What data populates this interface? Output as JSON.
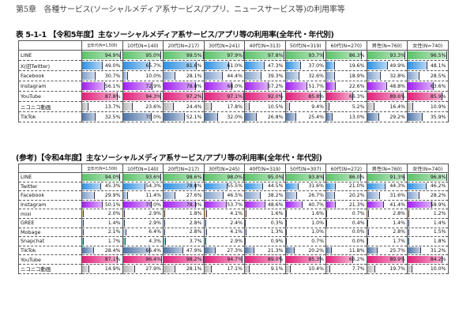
{
  "chapter_heading": "第5章　各種サービス(ソーシャルメディア系サービス/アプリ、ニュースサービス等)の利用率等",
  "colors": {
    "LINE": "#5cc26a",
    "X": "#2f8fe0",
    "Twitter": "#2f8fe0",
    "Facebook": "#7f9ec8",
    "Instagram": "#a020f0",
    "YouTube": "#e0207a",
    "niconico": "#b5b5b5",
    "TikTok": "#4f74a5",
    "mixi": "#f0b040",
    "GREE": "#9fc7e8",
    "Mobage": "#9fb8d8",
    "Snapchat": "#20b090"
  },
  "table1": {
    "title": "表 5-1-1 【令和5年度】主なソーシャルメディア系サービス/アプリ等の利用率(全年代・年代別)",
    "columns": [
      "全年代(N=1,500)",
      "10代(N=140)",
      "20代(N=217)",
      "30代(N=241)",
      "40代(N=313)",
      "50代(N=319)",
      "60代(N=270)",
      "男性(N=760)",
      "女性(N=740)"
    ],
    "rows": [
      {
        "label": "LINE",
        "key": "LINE",
        "values": [
          94.9,
          95.0,
          99.5,
          97.9,
          97.8,
          93.7,
          86.3,
          93.3,
          96.5
        ]
      },
      {
        "label": "X(旧Twitter)",
        "key": "X",
        "values": [
          49.0,
          65.7,
          81.6,
          61.0,
          47.3,
          37.0,
          19.6,
          49.9,
          48.1
        ]
      },
      {
        "label": "Facebook",
        "key": "Facebook",
        "values": [
          30.7,
          10.0,
          28.1,
          44.4,
          39.3,
          32.6,
          18.9,
          32.8,
          28.5
        ]
      },
      {
        "label": "Instagram",
        "key": "Instagram",
        "values": [
          56.1,
          72.9,
          78.8,
          68.0,
          57.2,
          51.7,
          22.6,
          48.8,
          63.6
        ]
      },
      {
        "label": "YouTube",
        "key": "YouTube",
        "values": [
          87.8,
          94.3,
          97.2,
          97.1,
          92.0,
          85.8,
          66.3,
          89.6,
          85.9
        ]
      },
      {
        "label": "ニコニコ動画",
        "key": "niconico",
        "values": [
          13.7,
          23.6,
          24.4,
          17.8,
          10.5,
          9.4,
          5.2,
          16.4,
          10.9
        ]
      },
      {
        "label": "TikTok",
        "key": "TikTok",
        "values": [
          32.5,
          70.0,
          52.1,
          32.0,
          26.8,
          25.4,
          13.0,
          29.2,
          35.9
        ]
      }
    ]
  },
  "table2": {
    "title": "(参考)【令和4年度】主なソーシャルメディア系サービス/アプリ等の利用率(全年代・年代別)",
    "columns": [
      "全年代(N=1,500)",
      "10代(N=140)",
      "20代(N=217)",
      "30代(N=245)",
      "40代(N=319)",
      "50代(N=307)",
      "60代(N=272)",
      "男性(N=760)",
      "女性(N=740)"
    ],
    "rows": [
      {
        "label": "LINE",
        "key": "LINE",
        "values": [
          94.0,
          93.6,
          98.6,
          98.0,
          95.0,
          93.8,
          86.0,
          91.3,
          96.8
        ]
      },
      {
        "label": "Twitter",
        "key": "Twitter",
        "values": [
          45.3,
          54.3,
          78.8,
          55.5,
          44.5,
          31.6,
          21.0,
          44.3,
          46.2
        ]
      },
      {
        "label": "Facebook",
        "key": "Facebook",
        "values": [
          29.9,
          11.4,
          27.6,
          46.5,
          38.2,
          26.7,
          20.2,
          31.6,
          28.2
        ]
      },
      {
        "label": "Instagram",
        "key": "Instagram",
        "values": [
          50.1,
          70.0,
          78.3,
          53.7,
          48.6,
          40.7,
          21.3,
          41.4,
          58.9
        ]
      },
      {
        "label": "mixi",
        "key": "mixi",
        "values": [
          2.0,
          2.9,
          1.8,
          4.1,
          1.6,
          1.6,
          0.7,
          2.8,
          1.2
        ]
      },
      {
        "label": "GREE",
        "key": "GREE",
        "values": [
          1.4,
          2.9,
          2.8,
          2.4,
          0.3,
          1.0,
          0.4,
          1.4,
          1.4
        ]
      },
      {
        "label": "Mobage",
        "key": "Mobage",
        "values": [
          2.1,
          6.4,
          2.8,
          4.1,
          1.3,
          1.0,
          0.0,
          2.8,
          1.5
        ]
      },
      {
        "label": "Snapchat",
        "key": "Snapchat",
        "values": [
          1.7,
          4.3,
          3.7,
          2.9,
          0.9,
          0.7,
          0.0,
          1.7,
          1.8
        ]
      },
      {
        "label": "TikTok",
        "key": "TikTok",
        "values": [
          28.4,
          66.4,
          47.9,
          27.3,
          21.3,
          20.2,
          11.8,
          25.7,
          31.2
        ]
      },
      {
        "label": "YouTube",
        "key": "YouTube",
        "values": [
          87.1,
          96.4,
          98.2,
          94.7,
          89.0,
          85.3,
          66.2,
          89.9,
          84.2
        ]
      },
      {
        "label": "ニコニコ動画",
        "key": "niconico",
        "values": [
          14.9,
          27.9,
          28.1,
          17.1,
          9.1,
          10.4,
          7.7,
          19.7,
          10.0
        ]
      }
    ]
  },
  "chart_data": [
    {
      "type": "table",
      "title": "表 5-1-1 【令和5年度】主なソーシャルメディア系サービス/アプリ等の利用率(全年代・年代別)",
      "categories": [
        "全年代(N=1,500)",
        "10代(N=140)",
        "20代(N=217)",
        "30代(N=241)",
        "40代(N=313)",
        "50代(N=319)",
        "60代(N=270)",
        "男性(N=760)",
        "女性(N=740)"
      ],
      "series": [
        {
          "name": "LINE",
          "values": [
            94.9,
            95.0,
            99.5,
            97.9,
            97.8,
            93.7,
            86.3,
            93.3,
            96.5
          ]
        },
        {
          "name": "X(旧Twitter)",
          "values": [
            49.0,
            65.7,
            81.6,
            61.0,
            47.3,
            37.0,
            19.6,
            49.9,
            48.1
          ]
        },
        {
          "name": "Facebook",
          "values": [
            30.7,
            10.0,
            28.1,
            44.4,
            39.3,
            32.6,
            18.9,
            32.8,
            28.5
          ]
        },
        {
          "name": "Instagram",
          "values": [
            56.1,
            72.9,
            78.8,
            68.0,
            57.2,
            51.7,
            22.6,
            48.8,
            63.6
          ]
        },
        {
          "name": "YouTube",
          "values": [
            87.8,
            94.3,
            97.2,
            97.1,
            92.0,
            85.8,
            66.3,
            89.6,
            85.9
          ]
        },
        {
          "name": "ニコニコ動画",
          "values": [
            13.7,
            23.6,
            24.4,
            17.8,
            10.5,
            9.4,
            5.2,
            16.4,
            10.9
          ]
        },
        {
          "name": "TikTok",
          "values": [
            32.5,
            70.0,
            52.1,
            32.0,
            26.8,
            25.4,
            13.0,
            29.2,
            35.9
          ]
        }
      ],
      "unit": "%",
      "ylim": [
        0,
        100
      ]
    },
    {
      "type": "table",
      "title": "(参考)【令和4年度】主なソーシャルメディア系サービス/アプリ等の利用率(全年代・年代別)",
      "categories": [
        "全年代(N=1,500)",
        "10代(N=140)",
        "20代(N=217)",
        "30代(N=245)",
        "40代(N=319)",
        "50代(N=307)",
        "60代(N=272)",
        "男性(N=760)",
        "女性(N=740)"
      ],
      "series": [
        {
          "name": "LINE",
          "values": [
            94.0,
            93.6,
            98.6,
            98.0,
            95.0,
            93.8,
            86.0,
            91.3,
            96.8
          ]
        },
        {
          "name": "Twitter",
          "values": [
            45.3,
            54.3,
            78.8,
            55.5,
            44.5,
            31.6,
            21.0,
            44.3,
            46.2
          ]
        },
        {
          "name": "Facebook",
          "values": [
            29.9,
            11.4,
            27.6,
            46.5,
            38.2,
            26.7,
            20.2,
            31.6,
            28.2
          ]
        },
        {
          "name": "Instagram",
          "values": [
            50.1,
            70.0,
            78.3,
            53.7,
            48.6,
            40.7,
            21.3,
            41.4,
            58.9
          ]
        },
        {
          "name": "mixi",
          "values": [
            2.0,
            2.9,
            1.8,
            4.1,
            1.6,
            1.6,
            0.7,
            2.8,
            1.2
          ]
        },
        {
          "name": "GREE",
          "values": [
            1.4,
            2.9,
            2.8,
            2.4,
            0.3,
            1.0,
            0.4,
            1.4,
            1.4
          ]
        },
        {
          "name": "Mobage",
          "values": [
            2.1,
            6.4,
            2.8,
            4.1,
            1.3,
            1.0,
            0.0,
            2.8,
            1.5
          ]
        },
        {
          "name": "Snapchat",
          "values": [
            1.7,
            4.3,
            3.7,
            2.9,
            0.9,
            0.7,
            0.0,
            1.7,
            1.8
          ]
        },
        {
          "name": "TikTok",
          "values": [
            28.4,
            66.4,
            47.9,
            27.3,
            21.3,
            20.2,
            11.8,
            25.7,
            31.2
          ]
        },
        {
          "name": "YouTube",
          "values": [
            87.1,
            96.4,
            98.2,
            94.7,
            89.0,
            85.3,
            66.2,
            89.9,
            84.2
          ]
        },
        {
          "name": "ニコニコ動画",
          "values": [
            14.9,
            27.9,
            28.1,
            17.1,
            9.1,
            10.4,
            7.7,
            19.7,
            10.0
          ]
        }
      ],
      "unit": "%",
      "ylim": [
        0,
        100
      ]
    }
  ]
}
